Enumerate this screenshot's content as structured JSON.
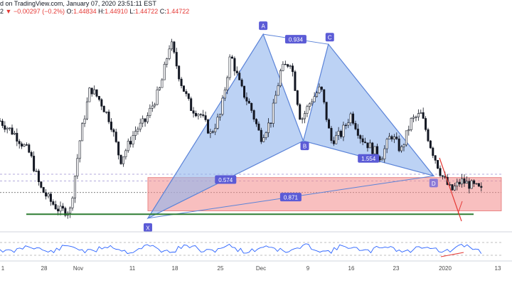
{
  "header": {
    "line1": "d on TradingView.com, January 07, 2020 23:51:11 EST",
    "line2_prefix": "2",
    "arrow": "▼",
    "change": "−0.00297 (−0.2%)",
    "o_label": "O:",
    "o_value": "1.44834",
    "h_label": "H:",
    "h_value": "1.44910",
    "l_label": "L:",
    "l_value": "1.44722",
    "c_label": "C:",
    "c_value": "1.44722"
  },
  "chart_data": {
    "type": "candlestick",
    "x_ticks": [
      "1",
      "28",
      "Nov",
      "11",
      "18",
      "25",
      "Dec",
      "9",
      "16",
      "23",
      "2020",
      "13"
    ],
    "pattern": {
      "points": [
        {
          "label": "X",
          "day": 29.5,
          "price": 1.4408
        },
        {
          "label": "A",
          "day": 52.5,
          "price": 1.496
        },
        {
          "label": "B",
          "day": 60.5,
          "price": 1.464
        },
        {
          "label": "C",
          "day": 65.5,
          "price": 1.493
        },
        {
          "label": "D",
          "day": 86.5,
          "price": 1.4535
        }
      ],
      "ratios": [
        {
          "text": "0.574",
          "between": "X-B"
        },
        {
          "text": "0.934",
          "between": "A-C"
        },
        {
          "text": "1.554",
          "between": "B-D"
        },
        {
          "text": "0.871",
          "between": "X-D"
        }
      ]
    },
    "zone": {
      "top": 1.453,
      "bottom": 1.443,
      "color": "#f28b8b"
    },
    "support_line": 1.442,
    "dashed_levels": [
      1.454,
      1.452,
      1.4485
    ],
    "ylim": [
      1.438,
      1.502
    ],
    "colors": {
      "up": "#ffffff",
      "down": "#131722",
      "pattern_fill": "#90b4ec",
      "pattern_line": "#5b83d8",
      "label": "#5b5bd6",
      "green": "#2e7d32",
      "red": "#e53935"
    },
    "oscillator": {
      "dashed_levels": [
        70,
        30
      ]
    }
  }
}
